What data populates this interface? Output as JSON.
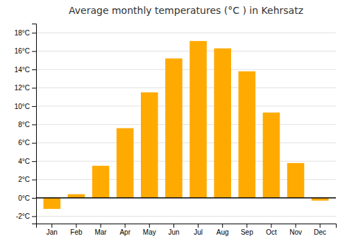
{
  "chart_data": {
    "type": "bar",
    "title": "Average monthly temperatures (°C ) in Kehrsatz",
    "categories": [
      "Jan",
      "Feb",
      "Mar",
      "Apr",
      "May",
      "Jun",
      "Jul",
      "Aug",
      "Sep",
      "Oct",
      "Nov",
      "Dec"
    ],
    "values": [
      -1.2,
      0.4,
      3.5,
      7.6,
      11.5,
      15.2,
      17.1,
      16.3,
      13.8,
      9.3,
      3.8,
      -0.3
    ],
    "color": "#FFAA00",
    "ylim": [
      -2.8,
      19.0
    ],
    "yticks": [
      {
        "value": -2,
        "label": "-2°C"
      },
      {
        "value": 0,
        "label": "0°C"
      },
      {
        "value": 2,
        "label": "2°C"
      },
      {
        "value": 4,
        "label": "4°C"
      },
      {
        "value": 6,
        "label": "6°C"
      },
      {
        "value": 8,
        "label": "8°C"
      },
      {
        "value": 10,
        "label": "10°C"
      },
      {
        "value": 12,
        "label": "12°C"
      },
      {
        "value": 14,
        "label": "14°C"
      },
      {
        "value": 16,
        "label": "16°C"
      },
      {
        "value": 18,
        "label": "18°C"
      }
    ],
    "grid": true
  }
}
